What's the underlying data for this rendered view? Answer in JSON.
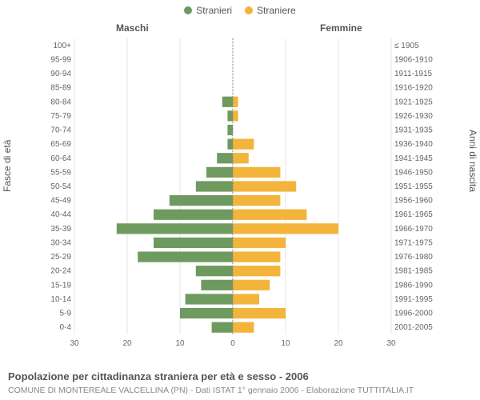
{
  "legend": {
    "male": {
      "label": "Stranieri",
      "color": "#6f9a5f"
    },
    "female": {
      "label": "Straniere",
      "color": "#f2b43a"
    }
  },
  "columns": {
    "male": "Maschi",
    "female": "Femmine"
  },
  "axis_titles": {
    "left": "Fasce di età",
    "right": "Anni di nascita"
  },
  "x_axis": {
    "max": 30,
    "ticks": [
      30,
      20,
      10,
      0,
      10,
      20,
      30
    ]
  },
  "chart": {
    "type": "population-pyramid",
    "background": "#ffffff",
    "grid_color": "#e6e6e6",
    "centerline_color": "#888888",
    "bar_gap_ratio": 0.25,
    "male_color": "#6f9a5f",
    "female_color": "#f2b43a",
    "rows": [
      {
        "age": "100+",
        "year": "≤ 1905",
        "m": 0,
        "f": 0
      },
      {
        "age": "95-99",
        "year": "1906-1910",
        "m": 0,
        "f": 0
      },
      {
        "age": "90-94",
        "year": "1911-1915",
        "m": 0,
        "f": 0
      },
      {
        "age": "85-89",
        "year": "1916-1920",
        "m": 0,
        "f": 0
      },
      {
        "age": "80-84",
        "year": "1921-1925",
        "m": 2,
        "f": 1
      },
      {
        "age": "75-79",
        "year": "1926-1930",
        "m": 1,
        "f": 1
      },
      {
        "age": "70-74",
        "year": "1931-1935",
        "m": 1,
        "f": 0
      },
      {
        "age": "65-69",
        "year": "1936-1940",
        "m": 1,
        "f": 4
      },
      {
        "age": "60-64",
        "year": "1941-1945",
        "m": 3,
        "f": 3
      },
      {
        "age": "55-59",
        "year": "1946-1950",
        "m": 5,
        "f": 9
      },
      {
        "age": "50-54",
        "year": "1951-1955",
        "m": 7,
        "f": 12
      },
      {
        "age": "45-49",
        "year": "1956-1960",
        "m": 12,
        "f": 9
      },
      {
        "age": "40-44",
        "year": "1961-1965",
        "m": 15,
        "f": 14
      },
      {
        "age": "35-39",
        "year": "1966-1970",
        "m": 22,
        "f": 20
      },
      {
        "age": "30-34",
        "year": "1971-1975",
        "m": 15,
        "f": 10
      },
      {
        "age": "25-29",
        "year": "1976-1980",
        "m": 18,
        "f": 9
      },
      {
        "age": "20-24",
        "year": "1981-1985",
        "m": 7,
        "f": 9
      },
      {
        "age": "15-19",
        "year": "1986-1990",
        "m": 6,
        "f": 7
      },
      {
        "age": "10-14",
        "year": "1991-1995",
        "m": 9,
        "f": 5
      },
      {
        "age": "5-9",
        "year": "1996-2000",
        "m": 10,
        "f": 10
      },
      {
        "age": "0-4",
        "year": "2001-2005",
        "m": 4,
        "f": 4
      }
    ]
  },
  "caption": "Popolazione per cittadinanza straniera per età e sesso - 2006",
  "subcaption": "COMUNE DI MONTEREALE VALCELLINA (PN) - Dati ISTAT 1° gennaio 2006 - Elaborazione TUTTITALIA.IT"
}
